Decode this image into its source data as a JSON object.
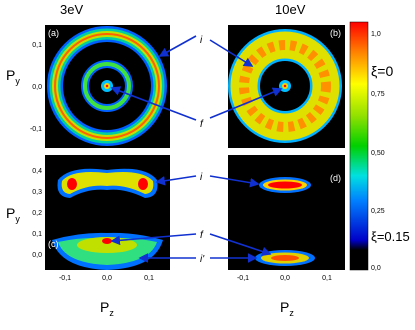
{
  "panels": {
    "column_titles": [
      "3eV",
      "10eV"
    ],
    "labels": [
      "(a)",
      "(b)",
      "(c)",
      "(d)"
    ]
  },
  "axes": {
    "y_label": {
      "main": "P",
      "sub": "y"
    },
    "x_label": {
      "main": "P",
      "sub": "z"
    },
    "top_yticks": [
      "0,1",
      "0,0",
      "-0,1"
    ],
    "bottom_yticks": [
      "0,4",
      "0,3",
      "0,2",
      "0,1",
      "0,0"
    ],
    "xticks": [
      "-0,1",
      "0,0",
      "0,1"
    ]
  },
  "annotations": {
    "top": [
      "i",
      "f"
    ],
    "bottom": [
      "i",
      "f",
      "i'"
    ]
  },
  "colorbar": {
    "ticks": [
      "1,0",
      "0,75",
      "0,50",
      "0,25",
      "0,0"
    ],
    "markers": [
      "ξ=0",
      "ξ=0.15"
    ]
  }
}
